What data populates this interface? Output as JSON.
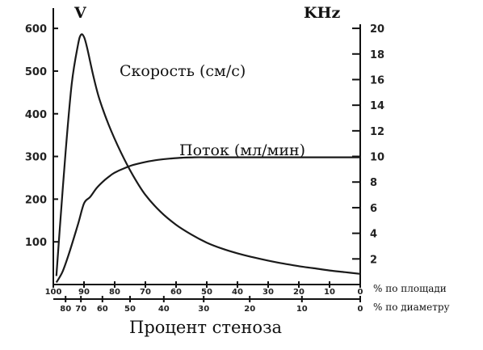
{
  "chart_data": {
    "type": "line",
    "left_axis": {
      "unit": "V",
      "ticks": [
        100,
        200,
        300,
        400,
        500,
        600
      ],
      "range": [
        0,
        640
      ]
    },
    "right_axis": {
      "unit": "KHz",
      "ticks": [
        2,
        4,
        6,
        8,
        10,
        12,
        14,
        16,
        18,
        20
      ],
      "range": [
        0,
        21.33
      ]
    },
    "x_axis_area": {
      "label": "% по площади",
      "ticks": [
        "100",
        "90",
        "80",
        "70",
        "60",
        "50",
        "40",
        "30",
        "20",
        "10",
        "0"
      ],
      "values": [
        100,
        90,
        80,
        70,
        60,
        50,
        40,
        30,
        20,
        10,
        0
      ]
    },
    "x_axis_diameter": {
      "label": "% по диаметру",
      "ticks": [
        "80",
        "70",
        "60",
        "50",
        "40",
        "30",
        "20",
        "10",
        "0"
      ],
      "area_equivalent": [
        96,
        91,
        84,
        75,
        64,
        51,
        36,
        19,
        0
      ]
    },
    "xlabel": "Процент стеноза",
    "series": [
      {
        "name": "Скорость (см/с)",
        "x": [
          99,
          98,
          96,
          94,
          92,
          91,
          90,
          89,
          87,
          85,
          82,
          78,
          74,
          70,
          65,
          60,
          55,
          50,
          45,
          40,
          35,
          30,
          25,
          20,
          15,
          10,
          5,
          0
        ],
        "y": [
          20,
          120,
          310,
          470,
          560,
          585,
          580,
          555,
          490,
          435,
          375,
          310,
          255,
          210,
          170,
          140,
          117,
          98,
          84,
          73,
          64,
          56,
          49,
          43,
          38,
          33,
          29,
          25
        ]
      },
      {
        "name": "Поток (мл/мин)",
        "x": [
          99,
          97,
          95,
          92,
          90,
          88,
          86,
          84,
          82,
          80,
          77,
          74,
          70,
          66,
          62,
          58,
          54,
          50,
          45,
          40,
          30,
          20,
          10,
          0
        ],
        "y": [
          5,
          30,
          70,
          140,
          190,
          205,
          225,
          240,
          252,
          262,
          272,
          280,
          287,
          292,
          295,
          297,
          298,
          298,
          298,
          298,
          298,
          298,
          298,
          298
        ]
      }
    ]
  }
}
